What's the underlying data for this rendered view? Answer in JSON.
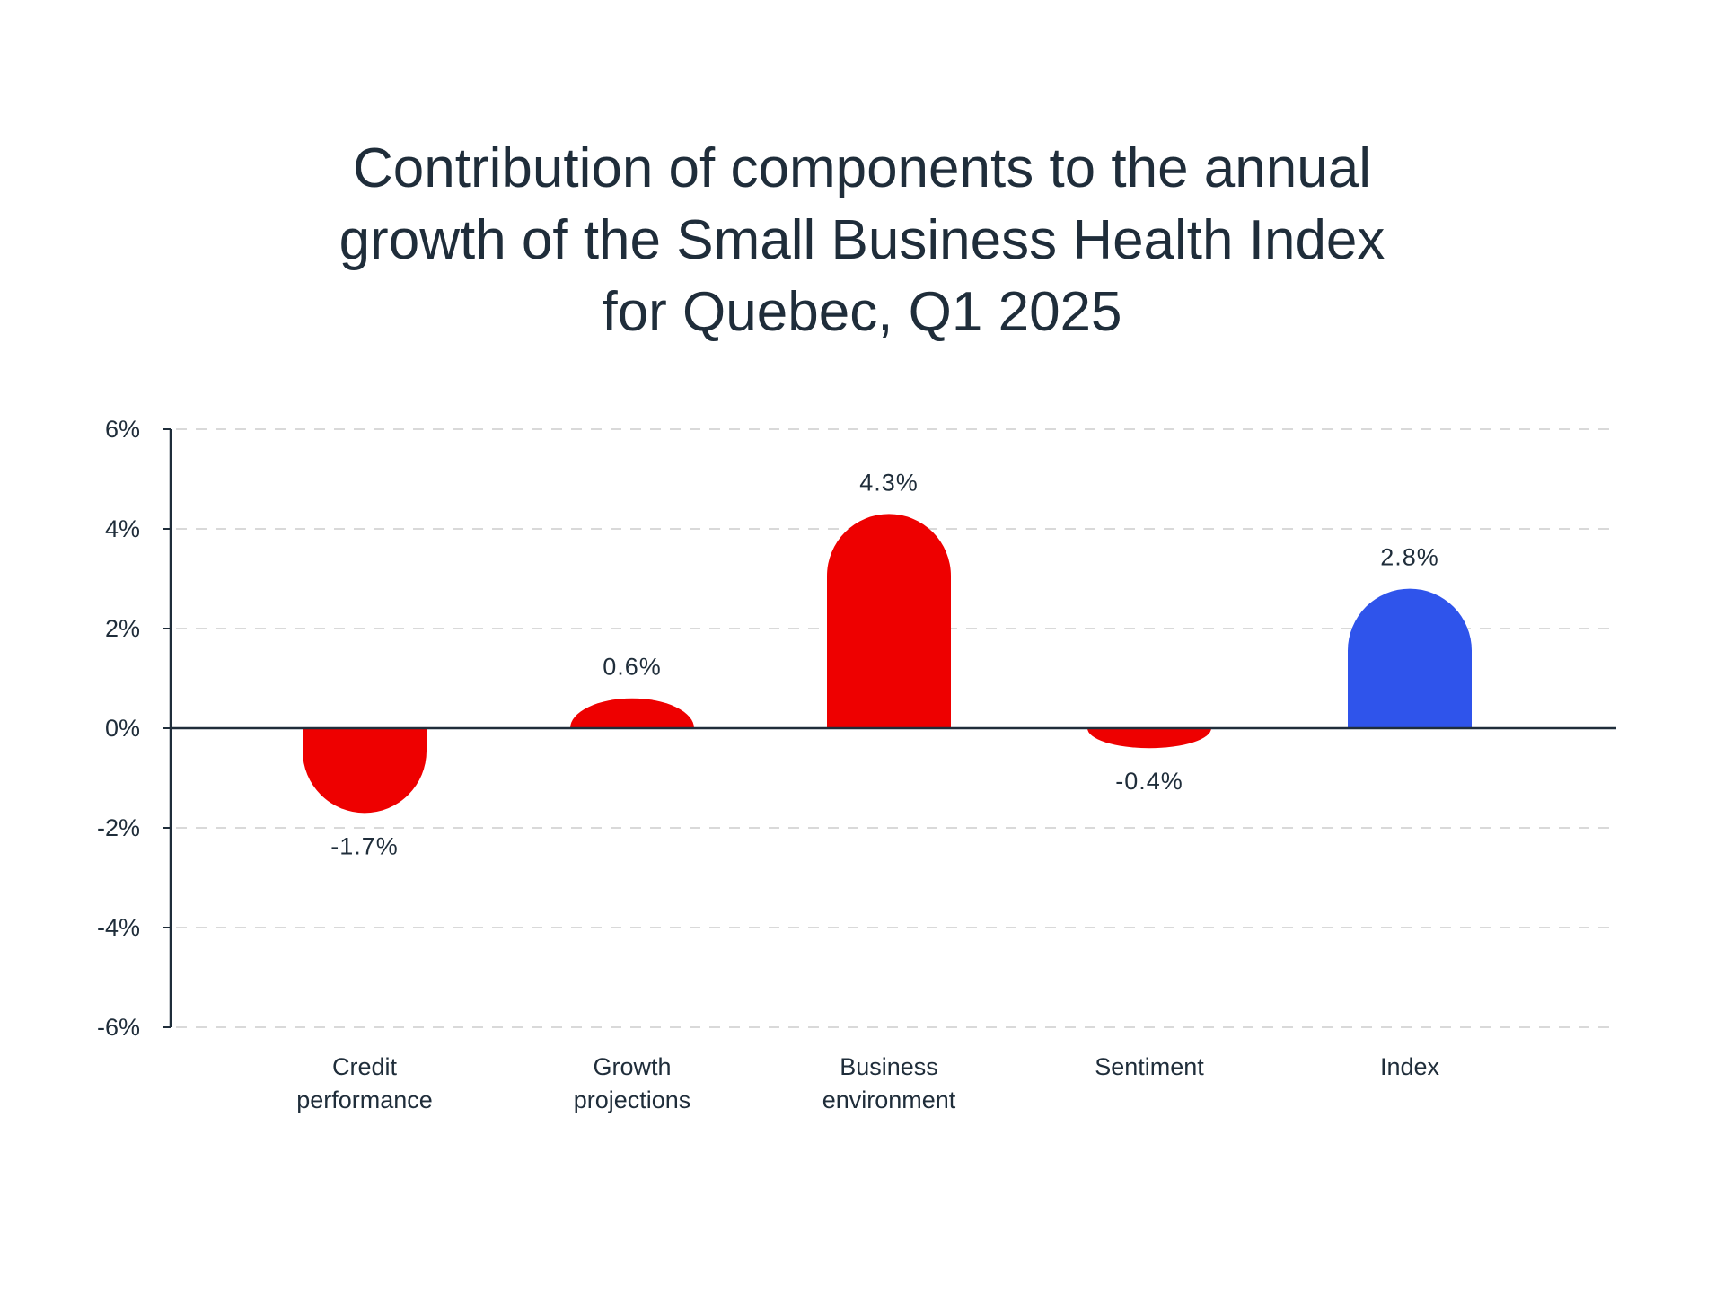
{
  "chart_data": {
    "type": "bar",
    "title": [
      "Contribution of components to the annual",
      "growth of the Small Business Health Index",
      "for Quebec, Q1 2025"
    ],
    "categories": [
      [
        "Credit",
        "performance"
      ],
      [
        "Growth",
        "projections"
      ],
      [
        "Business",
        "environment"
      ],
      [
        "Sentiment"
      ],
      [
        "Index"
      ]
    ],
    "values": [
      -1.7,
      0.6,
      4.3,
      -0.4,
      2.8
    ],
    "value_labels": [
      "-1.7%",
      "0.6%",
      "4.3%",
      "-0.4%",
      "2.8%"
    ],
    "bar_colors": [
      "#ee0000",
      "#ee0000",
      "#ee0000",
      "#ee0000",
      "#2f54eb"
    ],
    "ylim": [
      -6,
      6
    ],
    "yticks": [
      6,
      4,
      2,
      0,
      -2,
      -4,
      -6
    ],
    "ytick_labels": [
      "6%",
      "4%",
      "2%",
      "0%",
      "-2%",
      "-4%",
      "-6%"
    ],
    "xlabel": "",
    "ylabel": "",
    "grid": "horizontal-dashed",
    "legend": "none",
    "colors": {
      "component": "#ee0000",
      "index": "#2f54eb",
      "grid": "#d9d9d9",
      "axis": "#1f2d3a",
      "text": "#1f2d3a"
    }
  }
}
